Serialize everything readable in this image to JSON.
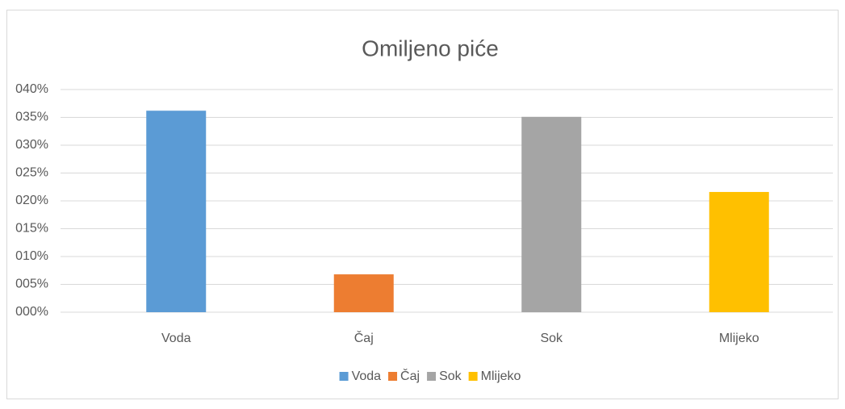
{
  "chart_data": {
    "type": "bar",
    "title": "Omiljeno piće",
    "categories": [
      "Voda",
      "Čaj",
      "Sok",
      "Mlijeko"
    ],
    "values": [
      36.2,
      6.8,
      35.1,
      21.6
    ],
    "colors": [
      "#5b9bd5",
      "#ed7d31",
      "#a5a5a5",
      "#ffc000"
    ],
    "ylim": [
      0,
      40
    ],
    "yticks": [
      {
        "value": 0,
        "label": "000%"
      },
      {
        "value": 5,
        "label": "005%"
      },
      {
        "value": 10,
        "label": "010%"
      },
      {
        "value": 15,
        "label": "015%"
      },
      {
        "value": 20,
        "label": "020%"
      },
      {
        "value": 25,
        "label": "025%"
      },
      {
        "value": 30,
        "label": "030%"
      },
      {
        "value": 35,
        "label": "035%"
      },
      {
        "value": 40,
        "label": "040%"
      }
    ],
    "grid": true,
    "legend": "bottom"
  }
}
